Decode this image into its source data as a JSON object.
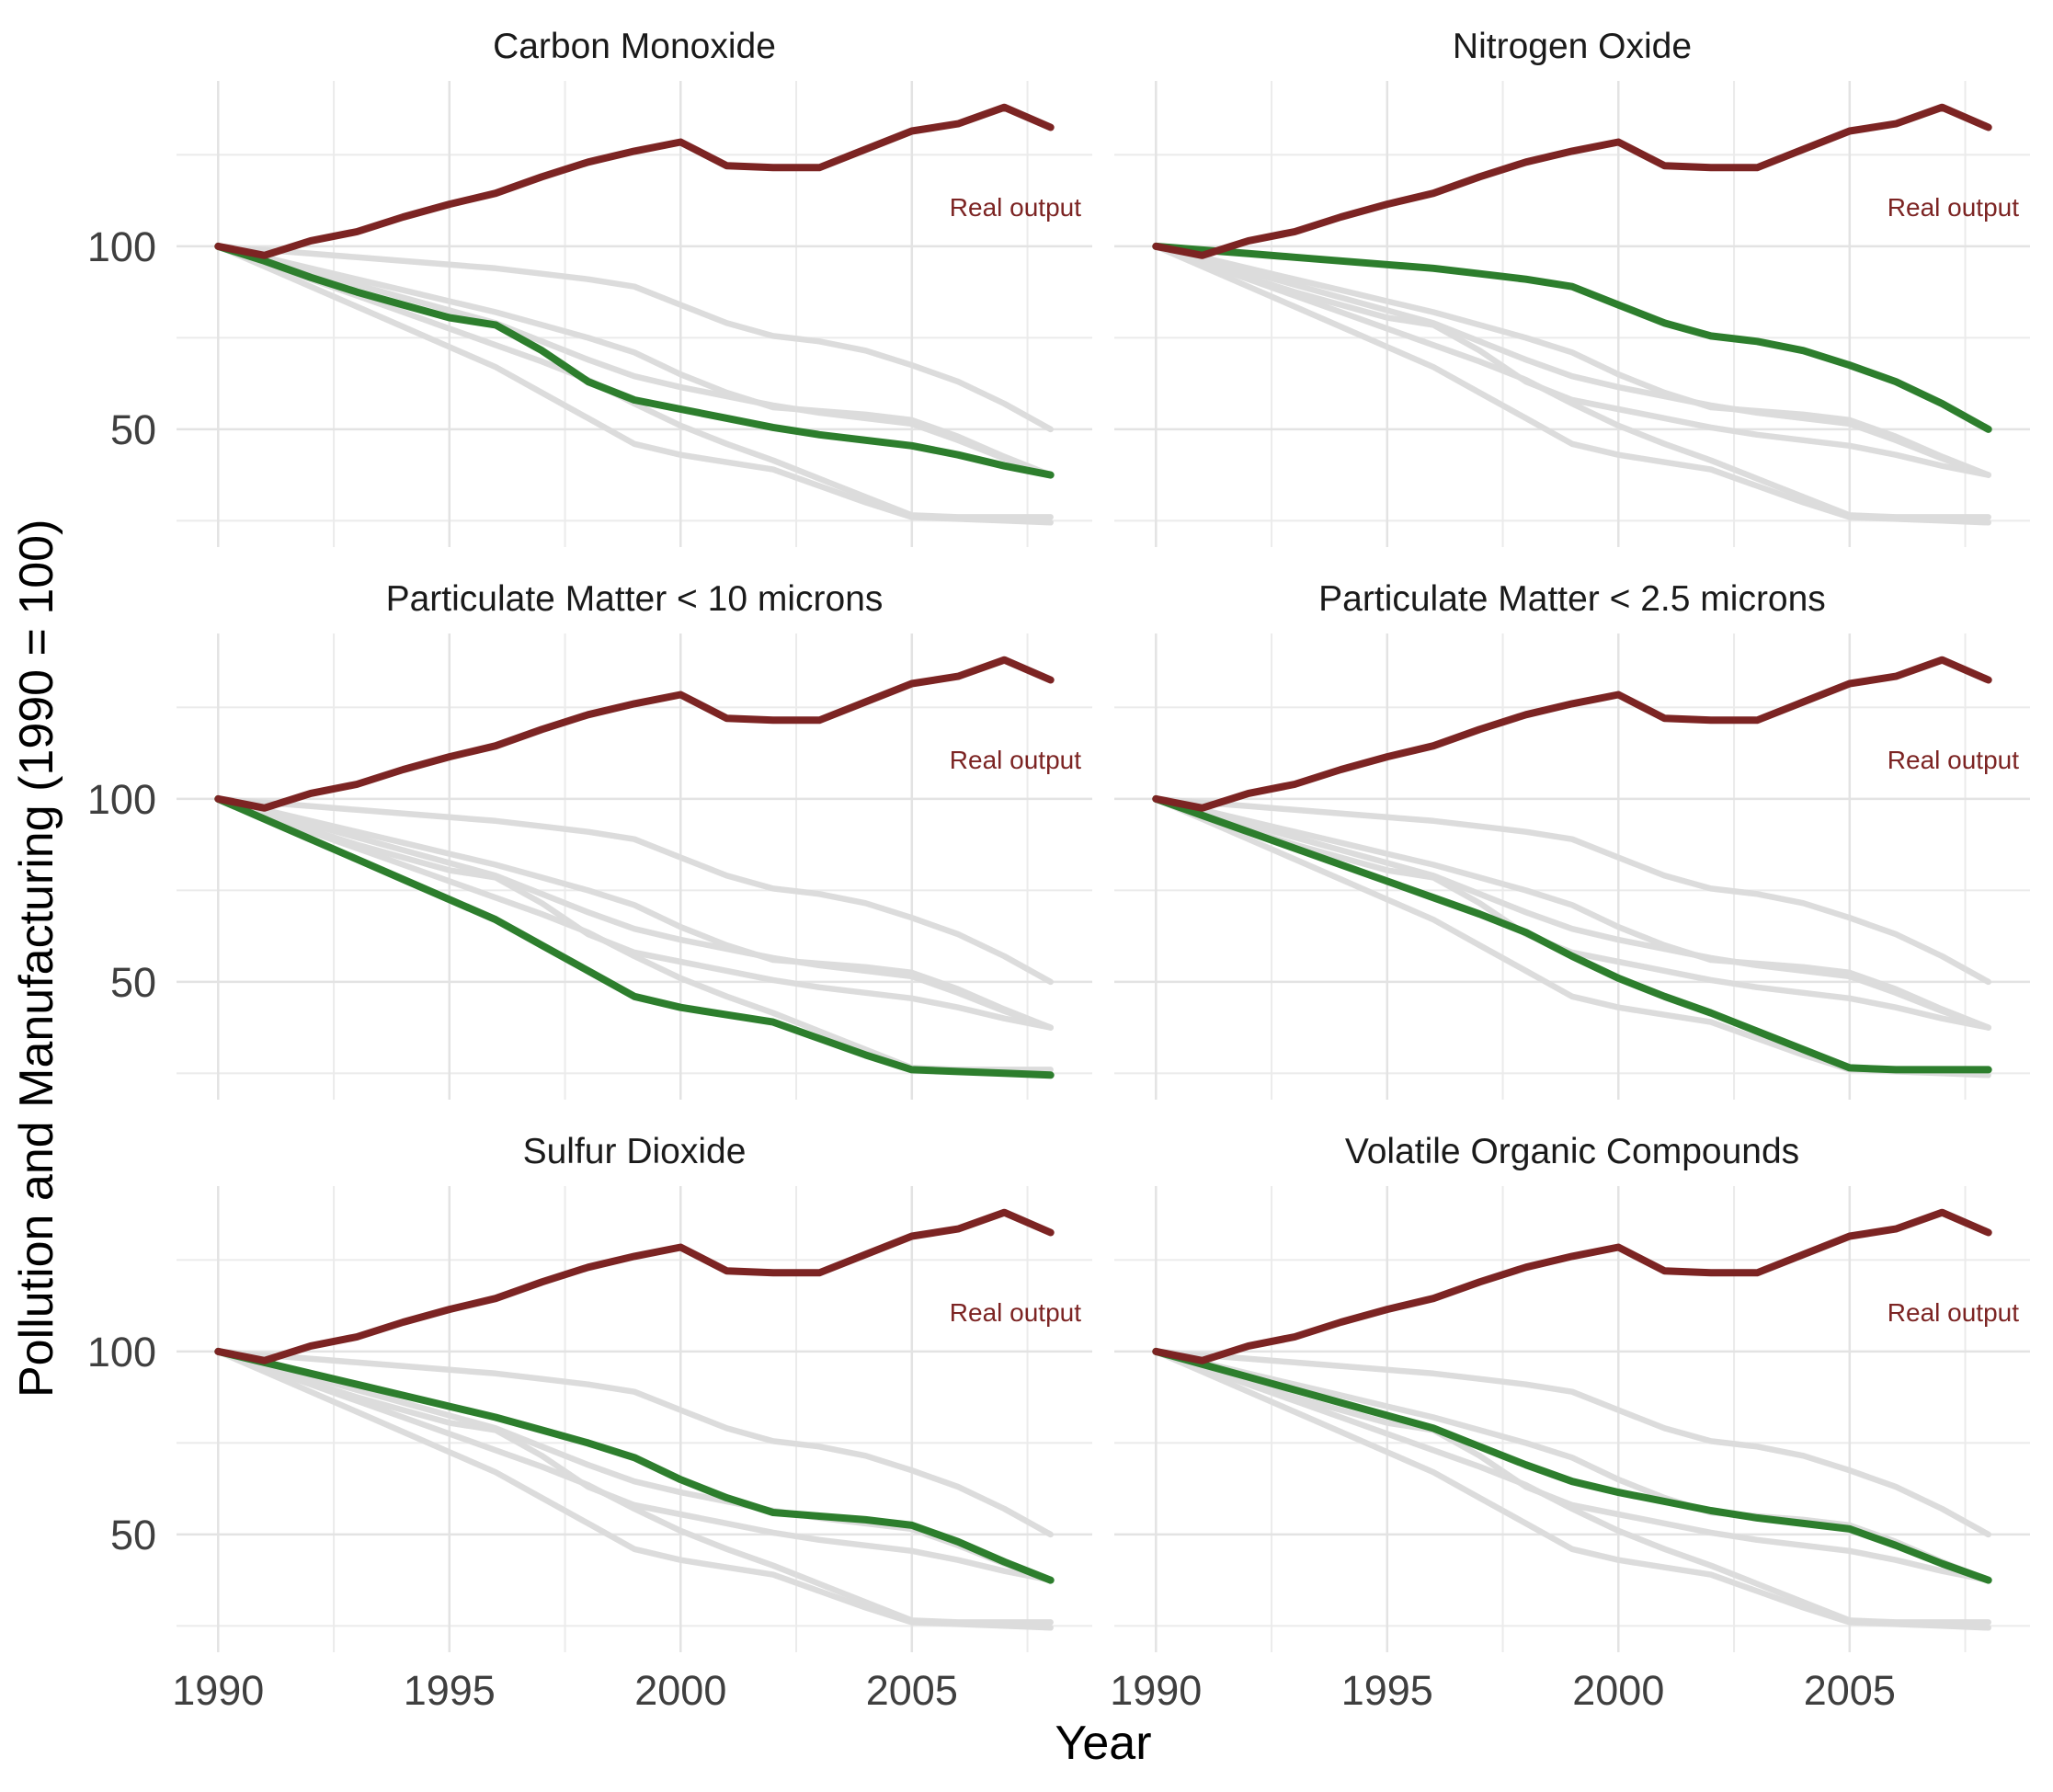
{
  "figure": {
    "y_axis_title": "Pollution and Manufacturing (1990 = 100)",
    "x_axis_title": "Year",
    "annotation_label": "Real output"
  },
  "chart_data": {
    "type": "line",
    "title": "",
    "xlabel": "Year",
    "ylabel": "Pollution and Manufacturing (1990 = 100)",
    "grid": true,
    "legend_position": "none",
    "x": [
      1990,
      1991,
      1992,
      1993,
      1994,
      1995,
      1996,
      1997,
      1998,
      1999,
      2000,
      2001,
      2002,
      2003,
      2004,
      2005,
      2006,
      2007,
      2008
    ],
    "x_domain": [
      1989.1,
      2008.9
    ],
    "y_domain": [
      17.8,
      145.2
    ],
    "x_ticks": [
      1990,
      1995,
      2000,
      2005
    ],
    "x_tick_labels": [
      "1990",
      "1995",
      "2000",
      "2005"
    ],
    "x_minor_ticks": [
      1992.5,
      1997.5,
      2002.5,
      2007.5
    ],
    "y_ticks": [
      100,
      50
    ],
    "y_tick_labels": [
      "100",
      "50"
    ],
    "y_minor_ticks": [
      25,
      75,
      125
    ],
    "annotation": {
      "label": "Real output",
      "y": 110.8
    },
    "facets": [
      {
        "title": "Carbon Monoxide",
        "highlight": "carbon_monoxide"
      },
      {
        "title": "Nitrogen Oxide",
        "highlight": "nitrogen_oxide"
      },
      {
        "title": "Particulate Matter < 10 microns",
        "highlight": "pm10"
      },
      {
        "title": "Particulate Matter < 2.5 microns",
        "highlight": "pm25"
      },
      {
        "title": "Sulfur Dioxide",
        "highlight": "sulfur_dioxide"
      },
      {
        "title": "Volatile Organic Compounds",
        "highlight": "voc"
      }
    ],
    "series_gray_order": [
      "carbon_monoxide",
      "nitrogen_oxide",
      "pm10",
      "pm25",
      "sulfur_dioxide",
      "voc"
    ],
    "series": {
      "real_output": [
        100,
        97.5,
        101.5,
        104,
        108,
        111.5,
        114.5,
        119,
        123,
        126,
        128.5,
        122,
        121.5,
        121.5,
        126.5,
        131.5,
        133.5,
        138,
        132.5
      ],
      "carbon_monoxide": [
        100,
        96,
        91.5,
        87.5,
        84,
        80.5,
        78.5,
        71.5,
        63,
        58,
        55.5,
        53,
        50.5,
        48.5,
        47,
        45.5,
        43,
        40,
        37.5
      ],
      "nitrogen_oxide": [
        100,
        99,
        98,
        97,
        96,
        95,
        94,
        92.5,
        91,
        89,
        84,
        79,
        75.5,
        74,
        71.5,
        67.5,
        63,
        57,
        50
      ],
      "pm10": [
        100,
        94.5,
        89,
        83.5,
        78,
        72.5,
        67,
        60,
        53,
        46,
        43,
        41,
        39,
        34.5,
        30,
        26,
        25.5,
        25,
        24.5
      ],
      "pm25": [
        100,
        95.5,
        91,
        86.5,
        82,
        77.5,
        73,
        68.5,
        63.5,
        57,
        51,
        46,
        41.5,
        36.5,
        31.5,
        26.5,
        26,
        26,
        26
      ],
      "sulfur_dioxide": [
        100,
        97,
        94,
        91,
        88,
        85,
        82,
        78.5,
        75,
        71,
        65,
        60,
        56,
        55,
        54,
        52.5,
        48,
        42.5,
        37.5
      ],
      "voc": [
        100,
        96.5,
        93,
        89.5,
        86,
        82.5,
        79,
        74,
        69,
        64.5,
        61.5,
        59,
        56.5,
        54.5,
        53,
        51.5,
        47,
        42,
        37.5
      ]
    },
    "colors": {
      "real_output": "#7c2423",
      "highlight": "#2d7e2d",
      "background_series": "#dcdcdc",
      "grid_major": "#e3e3e3",
      "grid_minor": "#ebebeb",
      "tick_label": "#3f3f3f",
      "facet_title": "#1a1a1a",
      "axis_title": "#000000"
    }
  }
}
